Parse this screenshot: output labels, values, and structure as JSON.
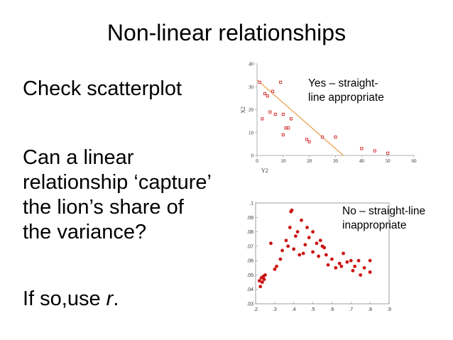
{
  "slide": {
    "title": "Non-linear relationships",
    "bullets": [
      "Check scatterplot",
      "Can a linear relationship ‘capture’ the lion’s share of the variance?"
    ],
    "last_bullet_prefix": "If so,use ",
    "last_bullet_var": "r",
    "last_bullet_suffix": ".",
    "note_top": [
      "Yes – straight-",
      "line appropriate"
    ],
    "note_bottom": [
      "No – straight-line",
      "inappropriate"
    ]
  },
  "chart_data": [
    {
      "type": "scatter",
      "xlabel": "Y2",
      "ylabel": "X2",
      "xlim": [
        0,
        60
      ],
      "ylim": [
        0,
        40
      ],
      "xticks": [
        "0",
        "10",
        "20",
        "30",
        "40",
        "50",
        "60"
      ],
      "yticks": [
        "0",
        "10",
        "20",
        "30",
        "40"
      ],
      "marker": "open-square",
      "marker_color": "#cc2222",
      "line_color": "#e8a04a",
      "fit_line": [
        [
          0,
          33
        ],
        [
          33,
          0
        ]
      ],
      "points": [
        [
          1,
          32
        ],
        [
          3,
          27
        ],
        [
          4,
          26
        ],
        [
          6,
          28
        ],
        [
          9,
          32
        ],
        [
          2,
          16
        ],
        [
          5,
          19
        ],
        [
          7,
          18
        ],
        [
          10,
          18
        ],
        [
          12,
          12
        ],
        [
          11,
          12
        ],
        [
          13,
          16
        ],
        [
          10,
          9
        ],
        [
          19,
          7
        ],
        [
          20,
          6
        ],
        [
          25,
          8
        ],
        [
          30,
          8
        ],
        [
          40,
          3
        ],
        [
          45,
          2
        ],
        [
          50,
          1
        ]
      ]
    },
    {
      "type": "scatter",
      "xlim": [
        0.2,
        0.9
      ],
      "ylim": [
        0.03,
        0.1
      ],
      "xticks": [
        ".2",
        ".3",
        ".4",
        ".5",
        ".6",
        ".7",
        ".8",
        ".9"
      ],
      "yticks": [
        ".03",
        ".04",
        ".05",
        ".06",
        ".07",
        ".08",
        ".09",
        ".1"
      ],
      "marker": "filled-circle",
      "marker_color": "#cc1111",
      "points": [
        [
          0.22,
          0.046
        ],
        [
          0.225,
          0.042
        ],
        [
          0.23,
          0.048
        ],
        [
          0.235,
          0.045
        ],
        [
          0.24,
          0.049
        ],
        [
          0.245,
          0.047
        ],
        [
          0.25,
          0.05
        ],
        [
          0.28,
          0.072
        ],
        [
          0.3,
          0.054
        ],
        [
          0.31,
          0.056
        ],
        [
          0.33,
          0.061
        ],
        [
          0.34,
          0.067
        ],
        [
          0.36,
          0.074
        ],
        [
          0.37,
          0.07
        ],
        [
          0.38,
          0.083
        ],
        [
          0.385,
          0.094
        ],
        [
          0.39,
          0.095
        ],
        [
          0.4,
          0.068
        ],
        [
          0.41,
          0.077
        ],
        [
          0.42,
          0.08
        ],
        [
          0.43,
          0.064
        ],
        [
          0.44,
          0.088
        ],
        [
          0.45,
          0.065
        ],
        [
          0.46,
          0.071
        ],
        [
          0.47,
          0.083
        ],
        [
          0.48,
          0.076
        ],
        [
          0.5,
          0.08
        ],
        [
          0.5,
          0.066
        ],
        [
          0.52,
          0.072
        ],
        [
          0.53,
          0.063
        ],
        [
          0.54,
          0.074
        ],
        [
          0.55,
          0.07
        ],
        [
          0.56,
          0.069
        ],
        [
          0.57,
          0.064
        ],
        [
          0.58,
          0.057
        ],
        [
          0.6,
          0.061
        ],
        [
          0.62,
          0.055
        ],
        [
          0.64,
          0.058
        ],
        [
          0.65,
          0.056
        ],
        [
          0.66,
          0.065
        ],
        [
          0.68,
          0.059
        ],
        [
          0.7,
          0.06
        ],
        [
          0.71,
          0.053
        ],
        [
          0.72,
          0.056
        ],
        [
          0.74,
          0.06
        ],
        [
          0.75,
          0.05
        ],
        [
          0.77,
          0.055
        ],
        [
          0.8,
          0.06
        ],
        [
          0.8,
          0.052
        ]
      ]
    }
  ]
}
